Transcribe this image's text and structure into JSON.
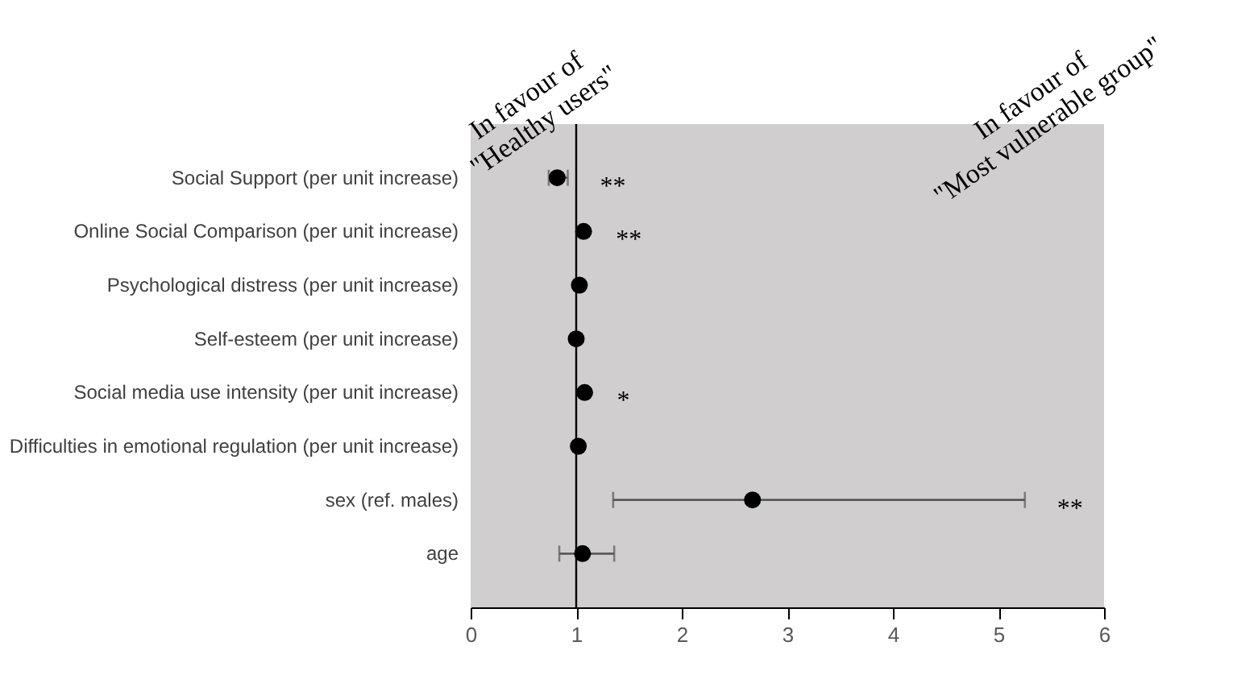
{
  "chart_data": {
    "type": "scatter",
    "categories": [
      "Social Support (per unit increase)",
      "Online Social Comparison (per unit increase)",
      "Psychological distress (per unit increase)",
      "Self-esteem (per unit increase)",
      "Social media use intensity (per unit increase)",
      "Difficulties in emotional regulation (per unit increase)",
      "sex (ref. males)",
      "age"
    ],
    "series": [
      {
        "color": "#000000",
        "values": [
          0.82,
          1.07,
          1.03,
          1.0,
          1.08,
          1.02,
          2.67,
          1.06
        ],
        "errors": [
          [
            0.74,
            0.92
          ],
          null,
          null,
          null,
          null,
          null,
          [
            1.35,
            5.25
          ],
          [
            0.84,
            1.36
          ]
        ]
      }
    ],
    "orientation": "horizontal",
    "marker": "circle",
    "xlim": [
      0,
      6
    ],
    "xticks": [
      0,
      1,
      2,
      3,
      4,
      5,
      6
    ],
    "ref_lines": [
      {
        "axis": "x",
        "value": 1,
        "color": "#000000"
      }
    ],
    "annotations": [
      "In favour of\n\"Healthy users\"",
      "In favour of\n\"Most vulnerable group\"",
      {
        "text": "**",
        "x": 0.92,
        "y": "Social Support (per unit increase)"
      },
      {
        "text": "**",
        "x": 1.07,
        "y": "Online Social Comparison (per unit increase)"
      },
      {
        "text": "*",
        "x": 1.08,
        "y": "Social media use intensity (per unit increase)"
      },
      {
        "text": "**",
        "x": 5.25,
        "y": "sex (ref. males)"
      }
    ],
    "grid": false,
    "legend": false
  }
}
